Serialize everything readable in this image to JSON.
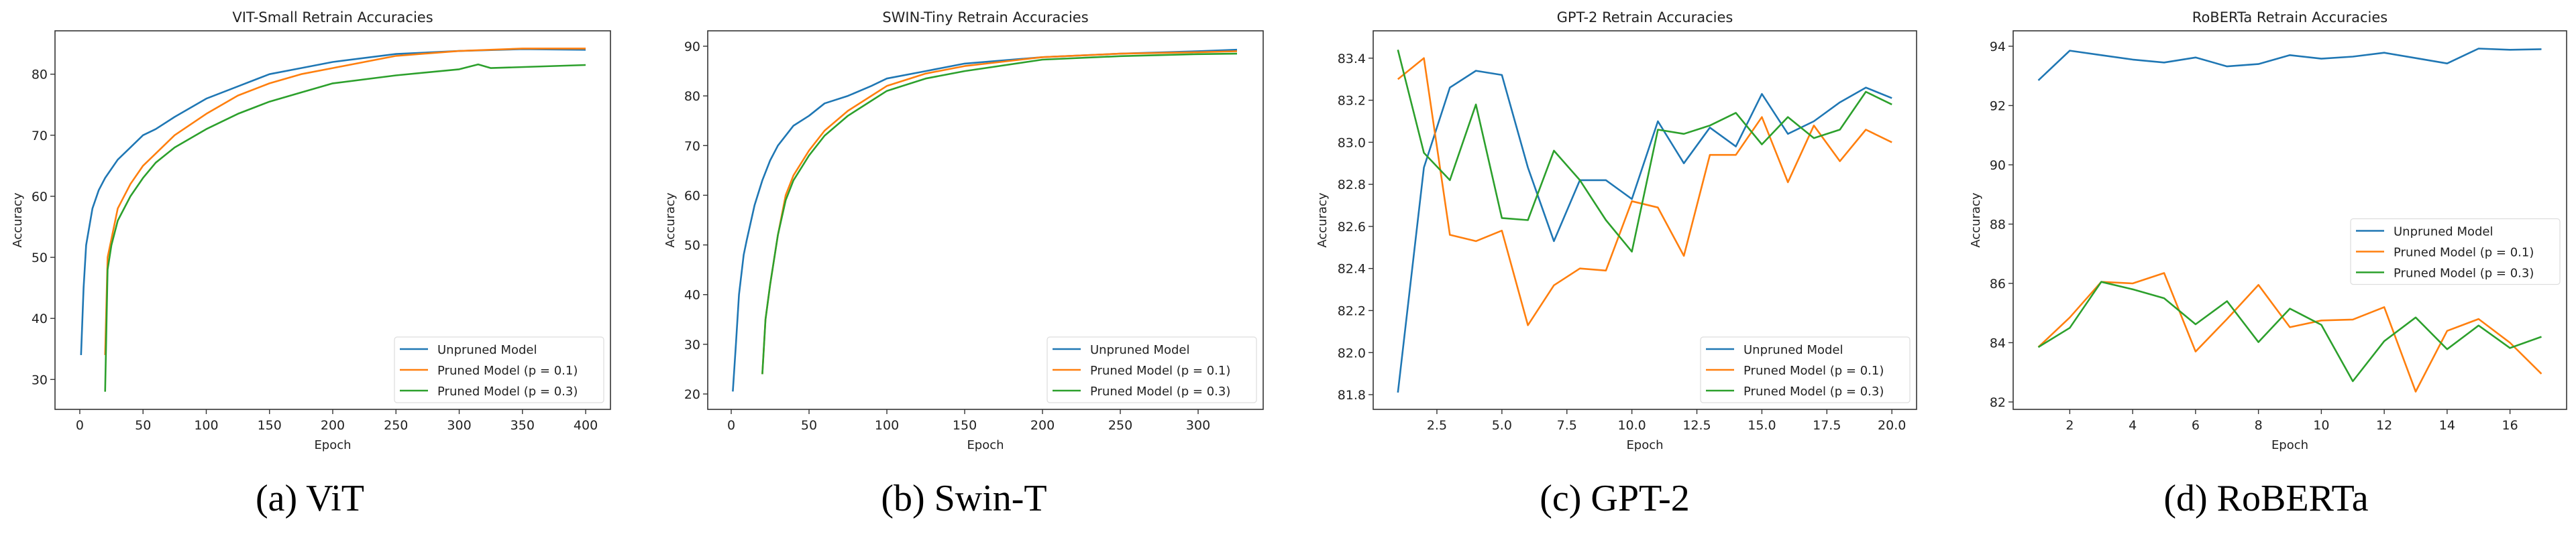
{
  "colors": {
    "unpruned": "#1f77b4",
    "p01": "#ff7f0e",
    "p03": "#2ca02c"
  },
  "chart_data": [
    {
      "type": "line",
      "caption": "(a) ViT",
      "title": "VIT-Small Retrain Accuracies",
      "xlabel": "Epoch",
      "ylabel": "Accuracy",
      "xlim": [
        -19.6,
        419.6
      ],
      "ylim": [
        25.1,
        87.1
      ],
      "xticks": [
        0,
        50,
        100,
        150,
        200,
        250,
        300,
        350,
        400
      ],
      "yticks": [
        30,
        40,
        50,
        60,
        70,
        80
      ],
      "tick_decimals": 0,
      "legend": "lower-right",
      "series": [
        {
          "name": "Unpruned Model",
          "color_key": "unpruned",
          "x": [
            1,
            3,
            5,
            10,
            15,
            20,
            30,
            40,
            50,
            60,
            75,
            100,
            125,
            150,
            175,
            200,
            250,
            300,
            350,
            400
          ],
          "y": [
            34,
            45,
            52,
            58,
            61,
            63,
            66,
            68,
            70,
            71,
            73,
            76,
            78,
            80,
            81,
            82,
            83.3,
            83.8,
            84.1,
            84
          ]
        },
        {
          "name": "Pruned Model (p = 0.1)",
          "color_key": "p01",
          "x": [
            20,
            22,
            25,
            30,
            40,
            50,
            60,
            75,
            100,
            125,
            150,
            175,
            200,
            250,
            300,
            350,
            400
          ],
          "y": [
            34,
            50,
            53,
            58,
            62,
            65,
            67,
            70,
            73.5,
            76.5,
            78.5,
            80,
            81,
            83,
            83.8,
            84.2,
            84.2
          ]
        },
        {
          "name": "Pruned Model (p = 0.3)",
          "color_key": "p03",
          "x": [
            20,
            22,
            25,
            30,
            40,
            50,
            60,
            75,
            100,
            125,
            150,
            175,
            200,
            250,
            300,
            315,
            325,
            400
          ],
          "y": [
            28,
            48,
            52,
            56,
            60,
            63,
            65.5,
            68,
            71,
            73.5,
            75.5,
            77,
            78.5,
            79.8,
            80.8,
            81.6,
            81,
            81.5
          ]
        }
      ]
    },
    {
      "type": "line",
      "caption": "(b) Swin-T",
      "title": "SWIN-Tiny Retrain Accuracies",
      "xlabel": "Epoch",
      "ylabel": "Accuracy",
      "xlim": [
        -15.1,
        341.8
      ],
      "ylim": [
        16.9,
        93.1
      ],
      "xticks": [
        0,
        50,
        100,
        150,
        200,
        250,
        300
      ],
      "yticks": [
        20,
        30,
        40,
        50,
        60,
        70,
        80,
        90
      ],
      "tick_decimals": 0,
      "legend": "lower-right",
      "series": [
        {
          "name": "Unpruned Model",
          "color_key": "unpruned",
          "x": [
            1,
            3,
            5,
            8,
            10,
            15,
            20,
            25,
            30,
            40,
            50,
            60,
            75,
            90,
            100,
            125,
            150,
            200,
            250,
            300,
            325
          ],
          "y": [
            20.5,
            30,
            40,
            48,
            51,
            58,
            63,
            67,
            70,
            74,
            76,
            78.5,
            80,
            82,
            83.5,
            85,
            86.5,
            87.8,
            88.5,
            89,
            89.3
          ]
        },
        {
          "name": "Pruned Model (p = 0.1)",
          "color_key": "p01",
          "x": [
            20,
            22,
            25,
            30,
            35,
            40,
            50,
            60,
            75,
            90,
            100,
            125,
            150,
            200,
            250,
            300,
            325
          ],
          "y": [
            24,
            35,
            42,
            52,
            60,
            64,
            69,
            73,
            77,
            80,
            82,
            84.5,
            86,
            87.8,
            88.5,
            88.8,
            89
          ]
        },
        {
          "name": "Pruned Model (p = 0.3)",
          "color_key": "p03",
          "x": [
            20,
            22,
            25,
            30,
            35,
            40,
            50,
            60,
            75,
            90,
            100,
            125,
            150,
            200,
            250,
            300,
            325
          ],
          "y": [
            24,
            35,
            42,
            52,
            59,
            63,
            68,
            72,
            76,
            79,
            81,
            83.5,
            85,
            87.3,
            88,
            88.4,
            88.5
          ]
        }
      ]
    },
    {
      "type": "line",
      "caption": "(c) GPT-2",
      "title": "GPT-2 Retrain Accuracies",
      "xlabel": "Epoch",
      "ylabel": "Accuracy",
      "xlim": [
        0.05,
        20.95
      ],
      "ylim": [
        81.73,
        83.53
      ],
      "xticks": [
        2.5,
        5.0,
        7.5,
        10.0,
        12.5,
        15.0,
        17.5,
        20.0
      ],
      "yticks": [
        81.8,
        82.0,
        82.2,
        82.4,
        82.6,
        82.8,
        83.0,
        83.2,
        83.4
      ],
      "tick_decimals": 1,
      "legend": "lower-right",
      "series": [
        {
          "name": "Unpruned Model",
          "color_key": "unpruned",
          "x": [
            1,
            2,
            3,
            4,
            5,
            6,
            7,
            8,
            9,
            10,
            11,
            12,
            13,
            14,
            15,
            16,
            17,
            18,
            19,
            20
          ],
          "y": [
            81.81,
            82.88,
            83.26,
            83.34,
            83.32,
            82.88,
            82.53,
            82.82,
            82.82,
            82.73,
            83.1,
            82.9,
            83.07,
            82.98,
            83.23,
            83.04,
            83.1,
            83.19,
            83.26,
            83.21
          ]
        },
        {
          "name": "Pruned Model (p = 0.1)",
          "color_key": "p01",
          "x": [
            1,
            2,
            3,
            4,
            5,
            6,
            7,
            8,
            9,
            10,
            11,
            12,
            13,
            14,
            15,
            16,
            17,
            18,
            19,
            20
          ],
          "y": [
            83.3,
            83.4,
            82.56,
            82.53,
            82.58,
            82.13,
            82.32,
            82.4,
            82.39,
            82.72,
            82.69,
            82.46,
            82.94,
            82.94,
            83.12,
            82.81,
            83.08,
            82.91,
            83.06,
            83.0
          ]
        },
        {
          "name": "Pruned Model (p = 0.3)",
          "color_key": "p03",
          "x": [
            1,
            2,
            3,
            4,
            5,
            6,
            7,
            8,
            9,
            10,
            11,
            12,
            13,
            14,
            15,
            16,
            17,
            18,
            19,
            20
          ],
          "y": [
            83.44,
            82.95,
            82.82,
            83.18,
            82.64,
            82.63,
            82.96,
            82.82,
            82.63,
            82.48,
            83.06,
            83.04,
            83.08,
            83.14,
            82.99,
            83.12,
            83.02,
            83.06,
            83.24,
            83.18
          ]
        }
      ]
    },
    {
      "type": "line",
      "caption": "(d) RoBERTa",
      "title": "RoBERTa Retrain Accuracies",
      "xlabel": "Epoch",
      "ylabel": "Accuracy",
      "xlim": [
        0.2,
        17.8
      ],
      "ylim": [
        81.75,
        94.52
      ],
      "xticks": [
        2,
        4,
        6,
        8,
        10,
        12,
        14,
        16
      ],
      "yticks": [
        82,
        84,
        86,
        88,
        90,
        92,
        94
      ],
      "tick_decimals": 0,
      "legend": "center-right",
      "series": [
        {
          "name": "Unpruned Model",
          "color_key": "unpruned",
          "x": [
            1,
            2,
            3,
            4,
            5,
            6,
            7,
            8,
            9,
            10,
            11,
            12,
            13,
            14,
            15,
            16,
            17
          ],
          "y": [
            92.85,
            93.85,
            93.7,
            93.55,
            93.45,
            93.62,
            93.32,
            93.4,
            93.7,
            93.58,
            93.65,
            93.78,
            93.6,
            93.42,
            93.92,
            93.88,
            93.9
          ]
        },
        {
          "name": "Pruned Model (p = 0.1)",
          "color_key": "p01",
          "x": [
            1,
            2,
            3,
            4,
            5,
            6,
            7,
            8,
            9,
            10,
            11,
            12,
            13,
            14,
            15,
            16,
            17
          ],
          "y": [
            83.85,
            84.85,
            86.05,
            86.0,
            86.35,
            83.7,
            84.8,
            85.95,
            84.52,
            84.75,
            84.78,
            85.2,
            82.35,
            84.4,
            84.8,
            84.0,
            82.95
          ]
        },
        {
          "name": "Pruned Model (p = 0.3)",
          "color_key": "p03",
          "x": [
            1,
            2,
            3,
            4,
            5,
            6,
            7,
            8,
            9,
            10,
            11,
            12,
            13,
            14,
            15,
            16,
            17
          ],
          "y": [
            83.85,
            84.5,
            86.05,
            85.8,
            85.5,
            84.62,
            85.4,
            84.02,
            85.15,
            84.6,
            82.7,
            84.05,
            84.85,
            83.78,
            84.58,
            83.82,
            84.2
          ]
        }
      ]
    }
  ]
}
